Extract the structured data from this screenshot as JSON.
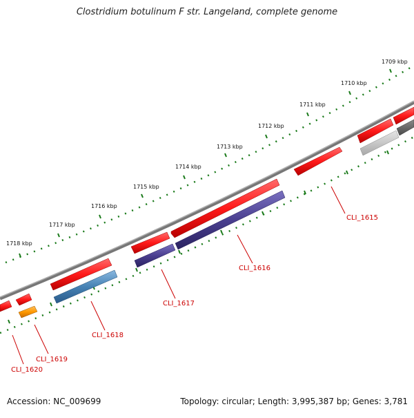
{
  "title": "Clostridium botulinum F str. Langeland, complete genome",
  "footer": {
    "accession": "Accession: NC_009699",
    "summary": "Topology: circular; Length: 3,995,387 bp; Genes: 3,781"
  },
  "colors": {
    "backbone": "#808080",
    "tick_dots": "#1a7a1a",
    "label_text": "#cc0000",
    "gene_red": "#ff1a1a",
    "gene_purple": "#4a3f8f",
    "gene_blue": "#4682b4",
    "gene_orange": "#ff9900",
    "gene_gray_light": "#c8c8c8",
    "gene_gray_dark": "#666666"
  },
  "scale": {
    "unit": "kbp",
    "ticks": [
      "1709 kbp",
      "1710 kbp",
      "1711 kbp",
      "1712 kbp",
      "1713 kbp",
      "1714 kbp",
      "1715 kbp",
      "1716 kbp",
      "1717 kbp",
      "1718 kbp"
    ]
  },
  "gene_labels": [
    "CLI_1615",
    "CLI_1616",
    "CLI_1617",
    "CLI_1618",
    "CLI_1619",
    "CLI_1620"
  ]
}
